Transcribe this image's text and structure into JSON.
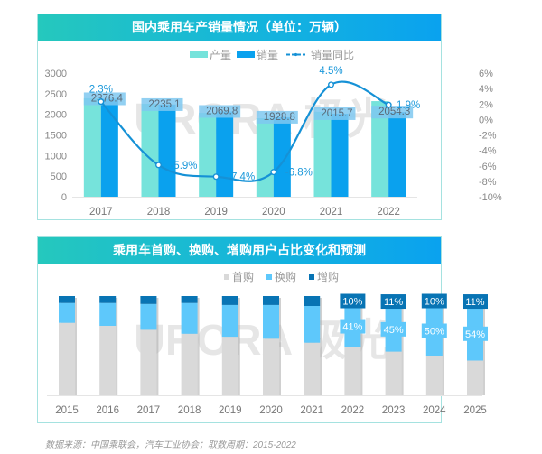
{
  "chart_data": [
    {
      "type": "bar",
      "title": "国内乘用车产销量情况（单位：万辆）",
      "categories": [
        "2017",
        "2018",
        "2019",
        "2020",
        "2021",
        "2022"
      ],
      "series": [
        {
          "name": "产量",
          "type": "bar",
          "axis": "left",
          "color": "#76e3db",
          "values": [
            2390,
            2255,
            2035,
            1905,
            2060,
            2320
          ]
        },
        {
          "name": "销量",
          "type": "bar",
          "axis": "left",
          "color": "#0aa1ee",
          "values": [
            2376.4,
            2235.1,
            2069.8,
            1928.8,
            2015.7,
            2054.3
          ],
          "labels": [
            "2376.4",
            "2235.1",
            "2069.8",
            "1928.8",
            "2015.7",
            "2054.3"
          ]
        },
        {
          "name": "销量同比",
          "type": "line",
          "axis": "right",
          "color": "#1591d6",
          "values": [
            2.3,
            -5.9,
            -7.4,
            -6.8,
            4.5,
            1.9
          ],
          "labels": [
            "2.3%",
            "-5.9%",
            "-7.4%",
            "-6.8%",
            "4.5%",
            "1.9%"
          ]
        }
      ],
      "ylim": [
        0,
        3000
      ],
      "yticks": [
        "0",
        "500",
        "1000",
        "1500",
        "2000",
        "2500",
        "3000"
      ],
      "y2lim": [
        -10,
        6
      ],
      "y2ticks": [
        "-10%",
        "-8%",
        "-6%",
        "-4%",
        "-2%",
        "0%",
        "2%",
        "4%",
        "6%"
      ],
      "legend": "top-center",
      "grid": false
    },
    {
      "type": "bar",
      "stacked": true,
      "title": "乘用车首购、换购、增购用户占比变化和预测",
      "categories": [
        "2015",
        "2016",
        "2017",
        "2018",
        "2019",
        "2020",
        "2021",
        "2022",
        "2023",
        "2024",
        "2025"
      ],
      "series": [
        {
          "name": "首购",
          "color": "#d9d9d9",
          "values": [
            0.73,
            0.7,
            0.66,
            0.62,
            0.59,
            0.57,
            0.53,
            0.49,
            0.44,
            0.4,
            0.35
          ]
        },
        {
          "name": "换购",
          "color": "#5ec8fb",
          "values": [
            0.2,
            0.23,
            0.26,
            0.31,
            0.32,
            0.34,
            0.37,
            0.41,
            0.45,
            0.5,
            0.54
          ],
          "labels": [
            "",
            "",
            "",
            "",
            "",
            "",
            "",
            "41%",
            "45%",
            "50%",
            "54%"
          ]
        },
        {
          "name": "增购",
          "color": "#0874b4",
          "values": [
            0.07,
            0.07,
            0.08,
            0.07,
            0.09,
            0.09,
            0.1,
            0.1,
            0.11,
            0.1,
            0.11
          ],
          "labels": [
            "",
            "",
            "",
            "",
            "",
            "",
            "",
            "10%",
            "11%",
            "10%",
            "11%"
          ]
        }
      ],
      "ylim": [
        0,
        1
      ],
      "legend": "top-center",
      "grid": false
    }
  ],
  "watermark": "URORA 极光",
  "source": "数据来源：中国乘联会，汽车工业协会；取数周期：2015-2022"
}
